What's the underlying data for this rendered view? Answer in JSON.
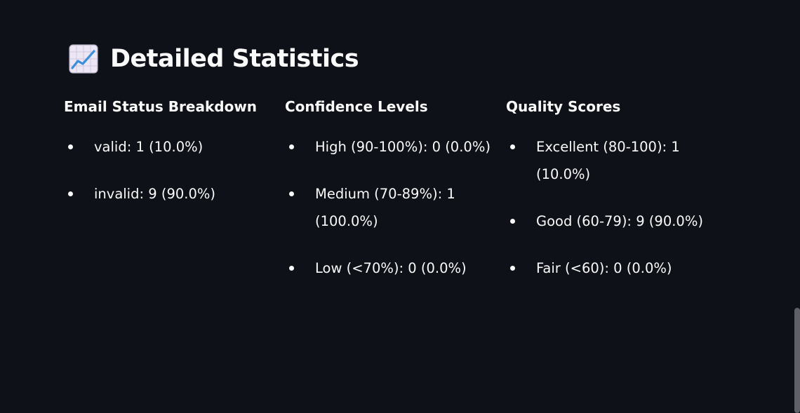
{
  "header": {
    "icon": "chart-increasing-icon",
    "title": "Detailed Statistics"
  },
  "columns": [
    {
      "title": "Email Status Breakdown",
      "items": [
        "valid: 1 (10.0%)",
        "invalid: 9 (90.0%)"
      ]
    },
    {
      "title": "Confidence Levels",
      "items": [
        "High (90-100%): 0 (0.0%)",
        "Medium (70-89%): 1 (100.0%)",
        "Low (<70%): 0 (0.0%)"
      ]
    },
    {
      "title": "Quality Scores",
      "items": [
        "Excellent (80-100): 1 (10.0%)",
        "Good (60-79): 9 (90.0%)",
        "Fair (<60): 0 (0.0%)"
      ]
    }
  ],
  "colors": {
    "background": "#0e1117",
    "text": "#fafafa",
    "scrollbar": "#5f6068"
  }
}
